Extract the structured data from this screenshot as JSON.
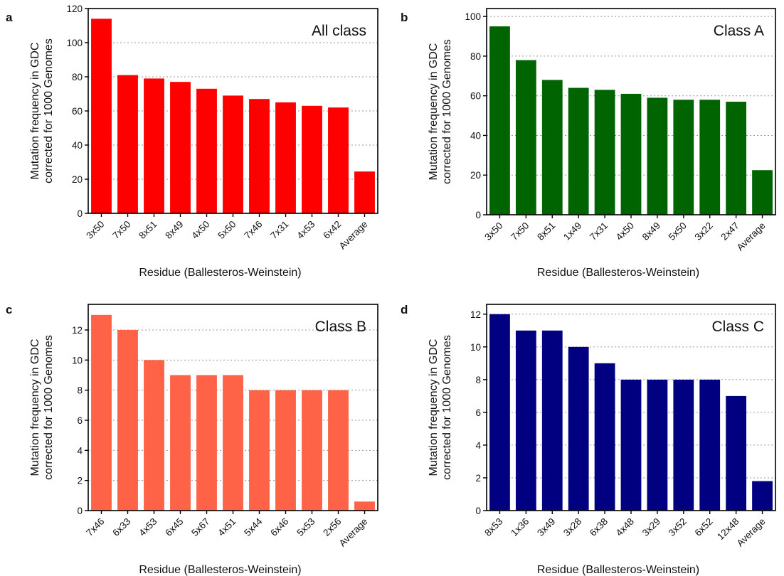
{
  "figure": {
    "xlabel": "Residue (Ballesteros-Weinstein)",
    "ylabel_line1": "Mutation frequency in GDC",
    "ylabel_line2": "corrected for 1000 Genomes"
  },
  "chart_data": [
    {
      "panel": "a",
      "type": "bar",
      "title": "All class",
      "color": "#ff0000",
      "categories": [
        "3x50",
        "7x50",
        "8x51",
        "8x49",
        "4x50",
        "5x50",
        "7x46",
        "7x31",
        "4x53",
        "6x42",
        "Average"
      ],
      "values": [
        114,
        81,
        79,
        77,
        73,
        69,
        67,
        65,
        63,
        62,
        24.5
      ],
      "ylim": [
        0,
        120
      ],
      "yticks": [
        0,
        20,
        40,
        60,
        80,
        100,
        120
      ],
      "grid": true,
      "xlabel": "Residue (Ballesteros-Weinstein)",
      "ylabel": "Mutation frequency in GDC corrected for 1000 Genomes"
    },
    {
      "panel": "b",
      "type": "bar",
      "title": "Class A",
      "color": "#006400",
      "categories": [
        "3x50",
        "7x50",
        "8x51",
        "1x49",
        "7x31",
        "4x50",
        "8x49",
        "5x50",
        "3x22",
        "2x47",
        "Average"
      ],
      "values": [
        95,
        78,
        68,
        64,
        63,
        61,
        59,
        58,
        58,
        57,
        22.5
      ],
      "ylim": [
        0,
        104
      ],
      "yticks": [
        0,
        20,
        40,
        60,
        80,
        100
      ],
      "grid": true,
      "xlabel": "Residue (Ballesteros-Weinstein)",
      "ylabel": "Mutation frequency in GDC corrected for 1000 Genomes"
    },
    {
      "panel": "c",
      "type": "bar",
      "title": "Class B",
      "color": "#ff6347",
      "categories": [
        "7x46",
        "6x33",
        "4x53",
        "6x45",
        "5x67",
        "4x51",
        "5x44",
        "6x46",
        "5x53",
        "2x56",
        "Average"
      ],
      "values": [
        13,
        12,
        10,
        9,
        9,
        9,
        8,
        8,
        8,
        8,
        0.6
      ],
      "ylim": [
        0,
        13.7
      ],
      "yticks": [
        0,
        2,
        4,
        6,
        8,
        10,
        12
      ],
      "grid": true,
      "xlabel": "Residue (Ballesteros-Weinstein)",
      "ylabel": "Mutation frequency in GDC corrected for 1000 Genomes"
    },
    {
      "panel": "d",
      "type": "bar",
      "title": "Class C",
      "color": "#000080",
      "categories": [
        "8x53",
        "1x36",
        "3x49",
        "3x28",
        "6x38",
        "4x48",
        "3x29",
        "3x52",
        "6x52",
        "12x48",
        "Average"
      ],
      "values": [
        12,
        11,
        11,
        10,
        9,
        8,
        8,
        8,
        8,
        7,
        1.8
      ],
      "ylim": [
        0,
        12.6
      ],
      "yticks": [
        0,
        2,
        4,
        6,
        8,
        10,
        12
      ],
      "grid": true,
      "xlabel": "Residue (Ballesteros-Weinstein)",
      "ylabel": "Mutation frequency in GDC corrected for 1000 Genomes"
    }
  ]
}
